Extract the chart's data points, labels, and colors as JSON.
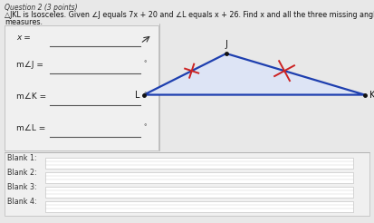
{
  "title": "Question 2 (3 points)",
  "line1": "△JKL is Isosceles. Given ∠J equals 7x + 20 and ∠L equals x + 26. Find x and all the three missing angle",
  "line2": "measures.",
  "labels_left": [
    "x =",
    "m∠J =",
    "m∠K =",
    "m∠L ="
  ],
  "degree_symbol": "°",
  "blank_labels": [
    "Blank 1:",
    "Blank 2:",
    "Blank 3:",
    "Blank 4:"
  ],
  "bg_color": "#d4d4d4",
  "content_bg": "#e8e8e8",
  "box_bg": "#f2f2f2",
  "triangle_color": "#1e3faf",
  "tick_color": "#cc2222",
  "J": [
    0.605,
    0.76
  ],
  "K": [
    0.975,
    0.575
  ],
  "L": [
    0.385,
    0.575
  ]
}
